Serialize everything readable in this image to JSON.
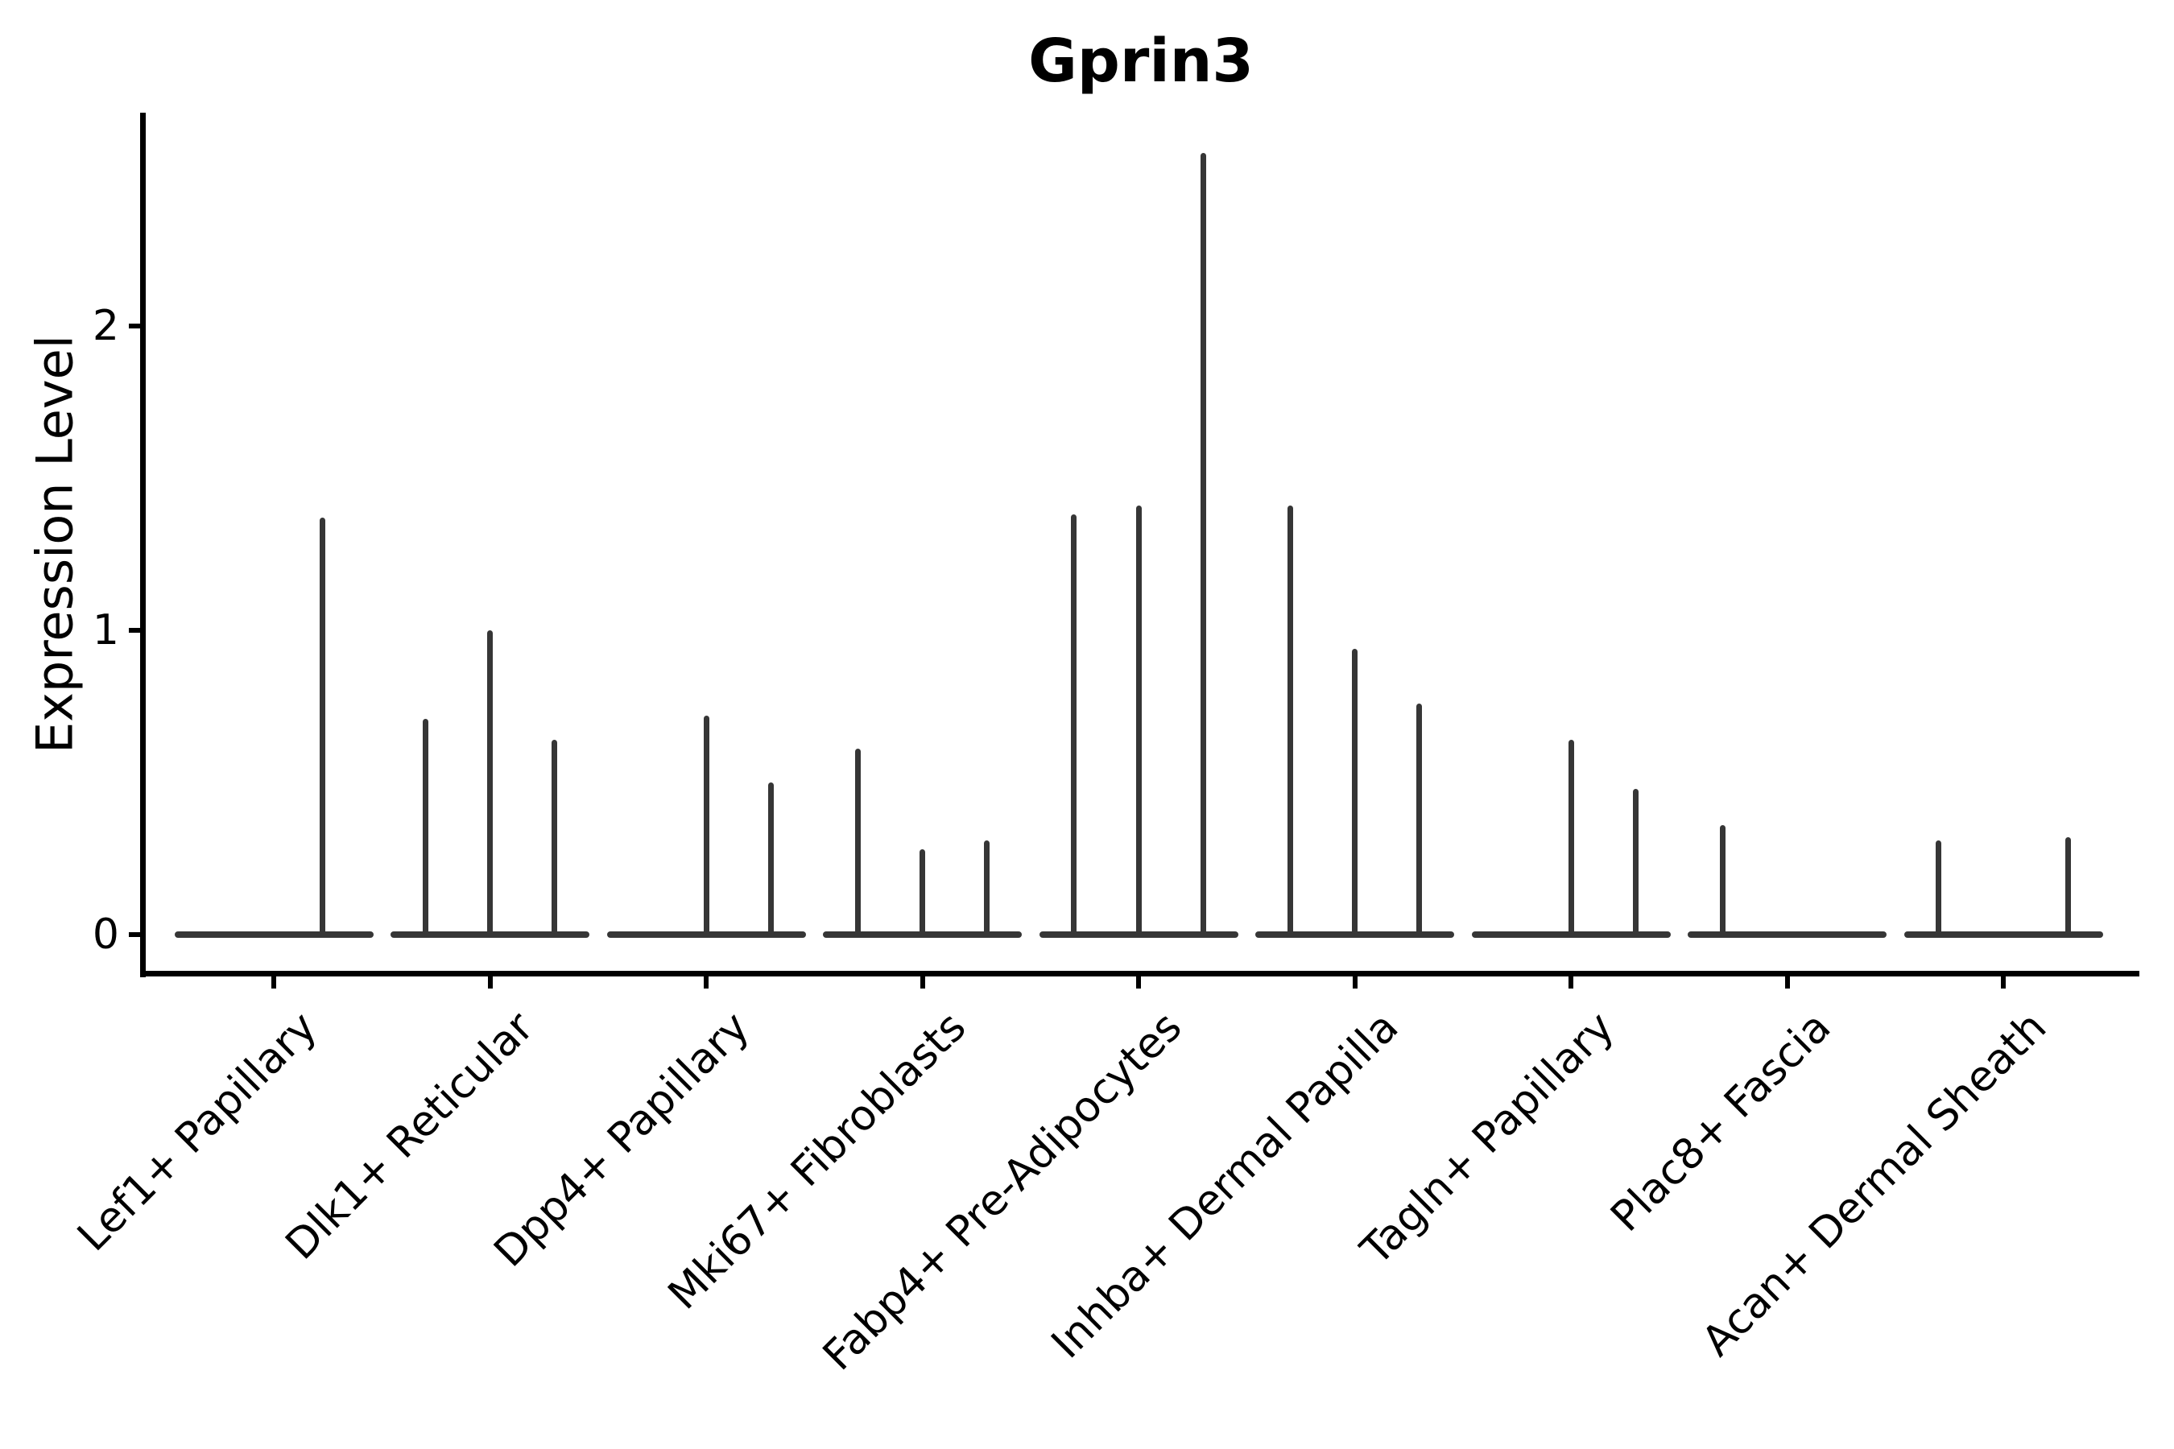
{
  "figure": {
    "title": "Gprin3",
    "background": "#ffffff"
  },
  "chart_data": {
    "type": "violin",
    "title": "Gprin3",
    "xlabel": "",
    "ylabel": "Expression Level",
    "ylim": [
      0,
      2.7
    ],
    "yticks": [
      "0",
      "1",
      "2"
    ],
    "ytick_values": [
      0,
      1,
      2
    ],
    "grid": false,
    "legend": "none",
    "colors": {
      "violin": "#363636",
      "axis": "#000000",
      "text": "#000000",
      "background": "#ffffff"
    },
    "categories": [
      "Lef1+ Papillary",
      "Dlk1+ Reticular",
      "Dpp4+ Papillary",
      "Mki67+ Fibroblasts",
      "Fabp4+ Pre-Adipocytes",
      "Inhba+ Dermal Papilla",
      "Tagln+ Papillary",
      "Plac8+ Fascia",
      "Acan+ Dermal Sheath"
    ],
    "violins": [
      {
        "category": "Lef1+ Papillary",
        "baseline": 0,
        "spikes": [
          {
            "pos": 0.746,
            "value": 1.37
          }
        ]
      },
      {
        "category": "Dlk1+ Reticular",
        "baseline": 0,
        "spikes": [
          {
            "pos": 0.176,
            "value": 0.71
          },
          {
            "pos": 0.5,
            "value": 1.0
          },
          {
            "pos": 0.824,
            "value": 0.64
          }
        ]
      },
      {
        "category": "Dpp4+ Papillary",
        "baseline": 0,
        "spikes": [
          {
            "pos": 0.5,
            "value": 0.72
          },
          {
            "pos": 0.824,
            "value": 0.5
          }
        ]
      },
      {
        "category": "Mki67+ Fibroblasts",
        "baseline": 0,
        "spikes": [
          {
            "pos": 0.176,
            "value": 0.61
          },
          {
            "pos": 0.5,
            "value": 0.28
          },
          {
            "pos": 0.824,
            "value": 0.31
          }
        ]
      },
      {
        "category": "Fabp4+ Pre-Adipocytes",
        "baseline": 0,
        "spikes": [
          {
            "pos": 0.176,
            "value": 1.38
          },
          {
            "pos": 0.5,
            "value": 1.41
          },
          {
            "pos": 0.824,
            "value": 2.57
          }
        ]
      },
      {
        "category": "Inhba+ Dermal Papilla",
        "baseline": 0,
        "spikes": [
          {
            "pos": 0.176,
            "value": 1.41
          },
          {
            "pos": 0.5,
            "value": 0.94
          },
          {
            "pos": 0.824,
            "value": 0.76
          }
        ]
      },
      {
        "category": "Tagln+ Papillary",
        "baseline": 0,
        "spikes": [
          {
            "pos": 0.5,
            "value": 0.64
          },
          {
            "pos": 0.824,
            "value": 0.48
          }
        ]
      },
      {
        "category": "Plac8+ Fascia",
        "baseline": 0,
        "spikes": [
          {
            "pos": 0.176,
            "value": 0.36
          }
        ]
      },
      {
        "category": "Acan+ Dermal Sheath",
        "baseline": 0,
        "spikes": [
          {
            "pos": 0.176,
            "value": 0.31
          },
          {
            "pos": 0.824,
            "value": 0.32
          }
        ]
      }
    ]
  }
}
